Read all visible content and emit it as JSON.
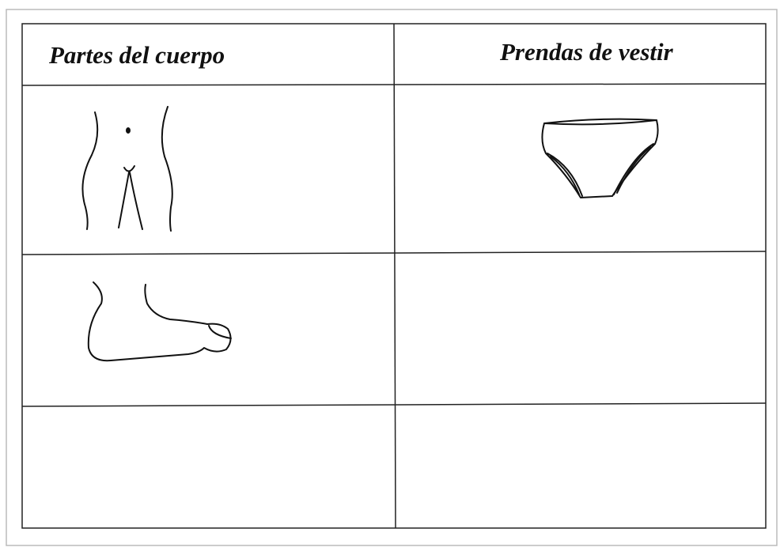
{
  "table": {
    "headers": [
      "Partes del cuerpo",
      "Prendas de vestir"
    ]
  }
}
